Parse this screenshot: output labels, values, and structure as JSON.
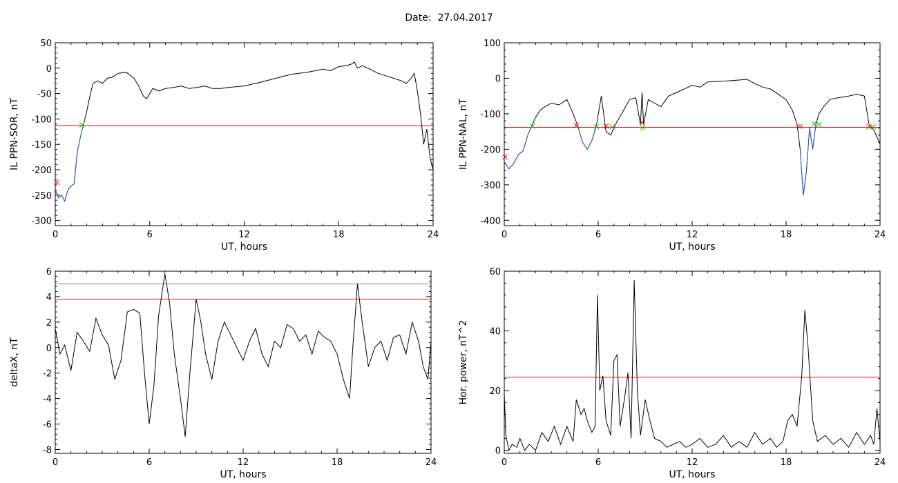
{
  "header": {
    "date_label": "Date:",
    "date_value": "27.04.2017"
  },
  "colors": {
    "trace": "#000000",
    "threshold": "#ff0000",
    "highlight": "#1f5fd0",
    "marker_red": "#ff0000",
    "marker_green": "#00c000",
    "teal_line": "#2a9d9d"
  },
  "chart_data": [
    {
      "id": "ppn-sor",
      "type": "line",
      "title": "",
      "xlabel": "UT, hours",
      "ylabel": "IL PPN-SOR, nT",
      "xlim": [
        0,
        24
      ],
      "ylim": [
        -310,
        50
      ],
      "xticks": [
        0,
        6,
        12,
        18,
        24
      ],
      "yticks": [
        -300,
        -250,
        -200,
        -150,
        -100,
        -50,
        0,
        50
      ],
      "thresholds": [
        {
          "value": -113,
          "color": "red"
        }
      ],
      "series": [
        {
          "x": [
            0,
            0.2,
            0.4,
            0.6,
            0.8,
            1.0,
            1.2,
            1.4,
            1.6,
            1.8,
            2.0,
            2.2,
            2.4,
            2.7,
            3.0,
            3.3,
            3.6,
            4.0,
            4.5,
            5.0,
            5.3,
            5.6,
            5.8,
            6.2,
            6.6,
            7.0,
            7.5,
            8.0,
            8.5,
            9.0,
            9.5,
            10.0,
            10.5,
            11.0,
            12.0,
            13.0,
            14.0,
            15.0,
            16.0,
            17.0,
            17.5,
            18.0,
            18.5,
            18.8,
            19.0,
            19.2,
            19.5,
            20.0,
            20.5,
            21.0,
            21.5,
            22.0,
            22.3,
            22.6,
            22.8,
            23.0,
            23.2,
            23.4,
            23.6,
            23.8,
            24.0
          ],
          "y": [
            -240,
            -255,
            -250,
            -262,
            -240,
            -232,
            -228,
            -165,
            -135,
            -110,
            -85,
            -55,
            -30,
            -25,
            -30,
            -20,
            -18,
            -10,
            -8,
            -20,
            -35,
            -55,
            -60,
            -40,
            -45,
            -40,
            -38,
            -35,
            -40,
            -38,
            -35,
            -40,
            -40,
            -38,
            -35,
            -28,
            -20,
            -12,
            -8,
            -2,
            -5,
            3,
            5,
            8,
            12,
            0,
            5,
            -2,
            -10,
            -15,
            -20,
            -25,
            -30,
            -20,
            -10,
            -45,
            -90,
            -150,
            -120,
            -175,
            -200
          ]
        },
        {
          "x": [
            0,
            0.2,
            0.4,
            0.6,
            0.8,
            1.0,
            1.2,
            1.4,
            1.6,
            1.8
          ],
          "y": [
            -240,
            -255,
            -250,
            -262,
            -240,
            -232,
            -228,
            -165,
            -135,
            -110
          ],
          "highlight": true
        }
      ],
      "markers_red": [
        {
          "x": 0.1,
          "y": -225
        }
      ],
      "markers_green": [
        {
          "x": 1.7,
          "y": -112
        }
      ]
    },
    {
      "id": "ppn-nal",
      "type": "line",
      "title": "",
      "xlabel": "UT, hours",
      "ylabel": "IL PPN-NAL, nT",
      "xlim": [
        0,
        24
      ],
      "ylim": [
        -415,
        100
      ],
      "xticks": [
        0,
        6,
        12,
        18,
        24
      ],
      "yticks": [
        -400,
        -300,
        -200,
        -100,
        0,
        100
      ],
      "thresholds": [
        {
          "value": -138,
          "color": "red"
        }
      ],
      "series": [
        {
          "x": [
            0,
            0.3,
            0.6,
            0.9,
            1.2,
            1.5,
            1.8,
            2.0,
            2.3,
            2.6,
            3.0,
            3.5,
            4.0,
            4.4,
            4.7,
            5.0,
            5.3,
            5.6,
            5.9,
            6.2,
            6.5,
            6.8,
            7.1,
            7.5,
            8.0,
            8.4,
            8.7,
            8.8,
            8.9,
            9.2,
            9.6,
            10.0,
            10.5,
            11.0,
            11.5,
            12.0,
            12.5,
            13.0,
            14.0,
            15.0,
            15.5,
            16.0,
            16.5,
            17.0,
            17.5,
            18.0,
            18.4,
            18.7,
            18.9,
            19.1,
            19.3,
            19.5,
            19.7,
            19.9,
            20.1,
            20.4,
            20.8,
            21.3,
            22.0,
            22.5,
            23.0,
            23.3,
            23.6,
            24.0
          ],
          "y": [
            -235,
            -255,
            -240,
            -215,
            -205,
            -160,
            -130,
            -110,
            -90,
            -80,
            -70,
            -75,
            -60,
            -100,
            -135,
            -180,
            -200,
            -175,
            -130,
            -50,
            -150,
            -160,
            -130,
            -100,
            -60,
            -55,
            -130,
            -40,
            -130,
            -60,
            -70,
            -80,
            -50,
            -40,
            -30,
            -20,
            -25,
            -10,
            -8,
            -5,
            -3,
            -15,
            -25,
            -30,
            -45,
            -60,
            -90,
            -130,
            -200,
            -330,
            -260,
            -140,
            -200,
            -130,
            -100,
            -80,
            -60,
            -55,
            -50,
            -45,
            -50,
            -130,
            -145,
            -185
          ]
        },
        {
          "x": [
            0,
            0.3,
            0.6,
            0.9,
            1.2,
            1.5,
            1.8
          ],
          "y": [
            -235,
            -255,
            -240,
            -215,
            -205,
            -160,
            -130
          ],
          "highlight": true
        },
        {
          "x": [
            4.7,
            5.0,
            5.3,
            5.6,
            5.9
          ],
          "y": [
            -135,
            -180,
            -200,
            -175,
            -130
          ],
          "highlight": true
        },
        {
          "x": [
            18.9,
            19.1,
            19.3,
            19.5,
            19.7,
            19.9
          ],
          "y": [
            -200,
            -330,
            -260,
            -140,
            -200,
            -130
          ],
          "highlight": true
        }
      ],
      "markers_red": [
        {
          "x": 0.05,
          "y": -222
        },
        {
          "x": 4.6,
          "y": -133
        },
        {
          "x": 6.5,
          "y": -135
        },
        {
          "x": 8.8,
          "y": -125
        },
        {
          "x": 18.9,
          "y": -135
        },
        {
          "x": 23.3,
          "y": -137
        }
      ],
      "markers_green": [
        {
          "x": 1.8,
          "y": -135
        },
        {
          "x": 5.9,
          "y": -137
        },
        {
          "x": 6.9,
          "y": -137
        },
        {
          "x": 8.85,
          "y": -138
        },
        {
          "x": 19.8,
          "y": -128
        },
        {
          "x": 20.1,
          "y": -130
        },
        {
          "x": 23.6,
          "y": -137
        }
      ]
    },
    {
      "id": "deltax",
      "type": "line",
      "title": "",
      "xlabel": "UT, hours",
      "ylabel": "deltaX, nT",
      "xlim": [
        0,
        24
      ],
      "ylim": [
        -8.3,
        6
      ],
      "xticks": [
        0,
        6,
        12,
        18,
        24
      ],
      "yticks": [
        -8,
        -6,
        -4,
        -2,
        0,
        2,
        4,
        6
      ],
      "thresholds": [
        {
          "value": 5.0,
          "color": "teal"
        },
        {
          "value": 3.8,
          "color": "red"
        }
      ],
      "series": [
        {
          "x": [
            0,
            0.3,
            0.6,
            1.0,
            1.4,
            1.8,
            2.2,
            2.6,
            3.0,
            3.4,
            3.8,
            4.2,
            4.6,
            5.0,
            5.4,
            5.7,
            6.0,
            6.3,
            6.6,
            7.0,
            7.3,
            7.6,
            8.0,
            8.3,
            8.6,
            9.0,
            9.3,
            9.6,
            10.0,
            10.4,
            10.8,
            11.2,
            11.6,
            12.0,
            12.4,
            12.8,
            13.2,
            13.6,
            14.0,
            14.4,
            14.8,
            15.2,
            15.6,
            16.0,
            16.4,
            16.8,
            17.2,
            17.6,
            18.0,
            18.4,
            18.8,
            19.0,
            19.3,
            19.6,
            20.0,
            20.4,
            20.8,
            21.2,
            21.6,
            22.0,
            22.4,
            22.8,
            23.2,
            23.5,
            23.8,
            24.0
          ],
          "y": [
            1.5,
            -0.5,
            0.2,
            -1.8,
            1.2,
            0.5,
            -0.3,
            2.3,
            1.0,
            0.2,
            -2.5,
            -1.0,
            2.8,
            3.0,
            2.7,
            -2.0,
            -6.0,
            -3.0,
            2.5,
            5.8,
            3.5,
            -0.5,
            -4.0,
            -7.0,
            -2.0,
            3.8,
            2.0,
            -0.5,
            -2.5,
            0.5,
            2.0,
            1.0,
            0.0,
            -1.0,
            0.5,
            1.5,
            -0.5,
            -1.5,
            0.5,
            0.0,
            1.8,
            1.5,
            0.5,
            1.0,
            -0.5,
            1.3,
            0.8,
            0.5,
            -0.5,
            -2.5,
            -4.0,
            0.0,
            5.0,
            2.0,
            -1.5,
            0.0,
            0.5,
            -1.0,
            0.8,
            1.0,
            -0.5,
            2.0,
            0.5,
            -1.5,
            -2.5,
            0.5
          ]
        }
      ],
      "markers_red": [],
      "markers_green": []
    },
    {
      "id": "hor-power",
      "type": "line",
      "title": "",
      "xlabel": "UT, hours",
      "ylabel": "Hor. power, nT^2",
      "xlim": [
        0,
        24
      ],
      "ylim": [
        -1,
        60
      ],
      "xticks": [
        0,
        6,
        12,
        18,
        24
      ],
      "yticks": [
        0,
        20,
        40,
        60
      ],
      "thresholds": [
        {
          "value": 24.5,
          "color": "red"
        }
      ],
      "series": [
        {
          "x": [
            0,
            0.1,
            0.3,
            0.5,
            0.8,
            1.0,
            1.3,
            1.6,
            2.0,
            2.4,
            2.8,
            3.2,
            3.6,
            4.0,
            4.4,
            4.6,
            4.9,
            5.1,
            5.3,
            5.6,
            5.8,
            5.95,
            6.1,
            6.3,
            6.5,
            6.8,
            7.0,
            7.2,
            7.4,
            7.7,
            7.9,
            8.1,
            8.3,
            8.5,
            8.7,
            9.0,
            9.3,
            9.6,
            10.0,
            10.4,
            10.8,
            11.2,
            11.6,
            12.0,
            12.5,
            13.0,
            13.5,
            14.0,
            14.5,
            15.0,
            15.5,
            16.0,
            16.5,
            17.0,
            17.4,
            17.8,
            18.1,
            18.4,
            18.7,
            19.0,
            19.2,
            19.4,
            19.7,
            20.0,
            20.5,
            21.0,
            21.5,
            22.0,
            22.5,
            23.0,
            23.4,
            23.6,
            23.8,
            24.0
          ],
          "y": [
            19,
            5,
            0,
            2,
            1,
            4,
            0,
            2,
            0,
            6,
            3,
            8,
            2,
            8,
            3,
            17,
            12,
            14,
            10,
            6,
            8,
            52,
            20,
            25,
            10,
            5,
            30,
            32,
            8,
            18,
            26,
            4,
            57,
            20,
            5,
            17,
            10,
            4,
            3,
            1,
            2,
            3,
            1,
            2,
            4,
            1,
            2,
            5,
            1,
            3,
            1,
            6,
            2,
            4,
            1,
            3,
            10,
            12,
            8,
            25,
            47,
            35,
            10,
            3,
            5,
            2,
            4,
            1,
            6,
            2,
            5,
            2,
            14,
            3
          ]
        }
      ],
      "markers_red": [],
      "markers_green": []
    }
  ]
}
